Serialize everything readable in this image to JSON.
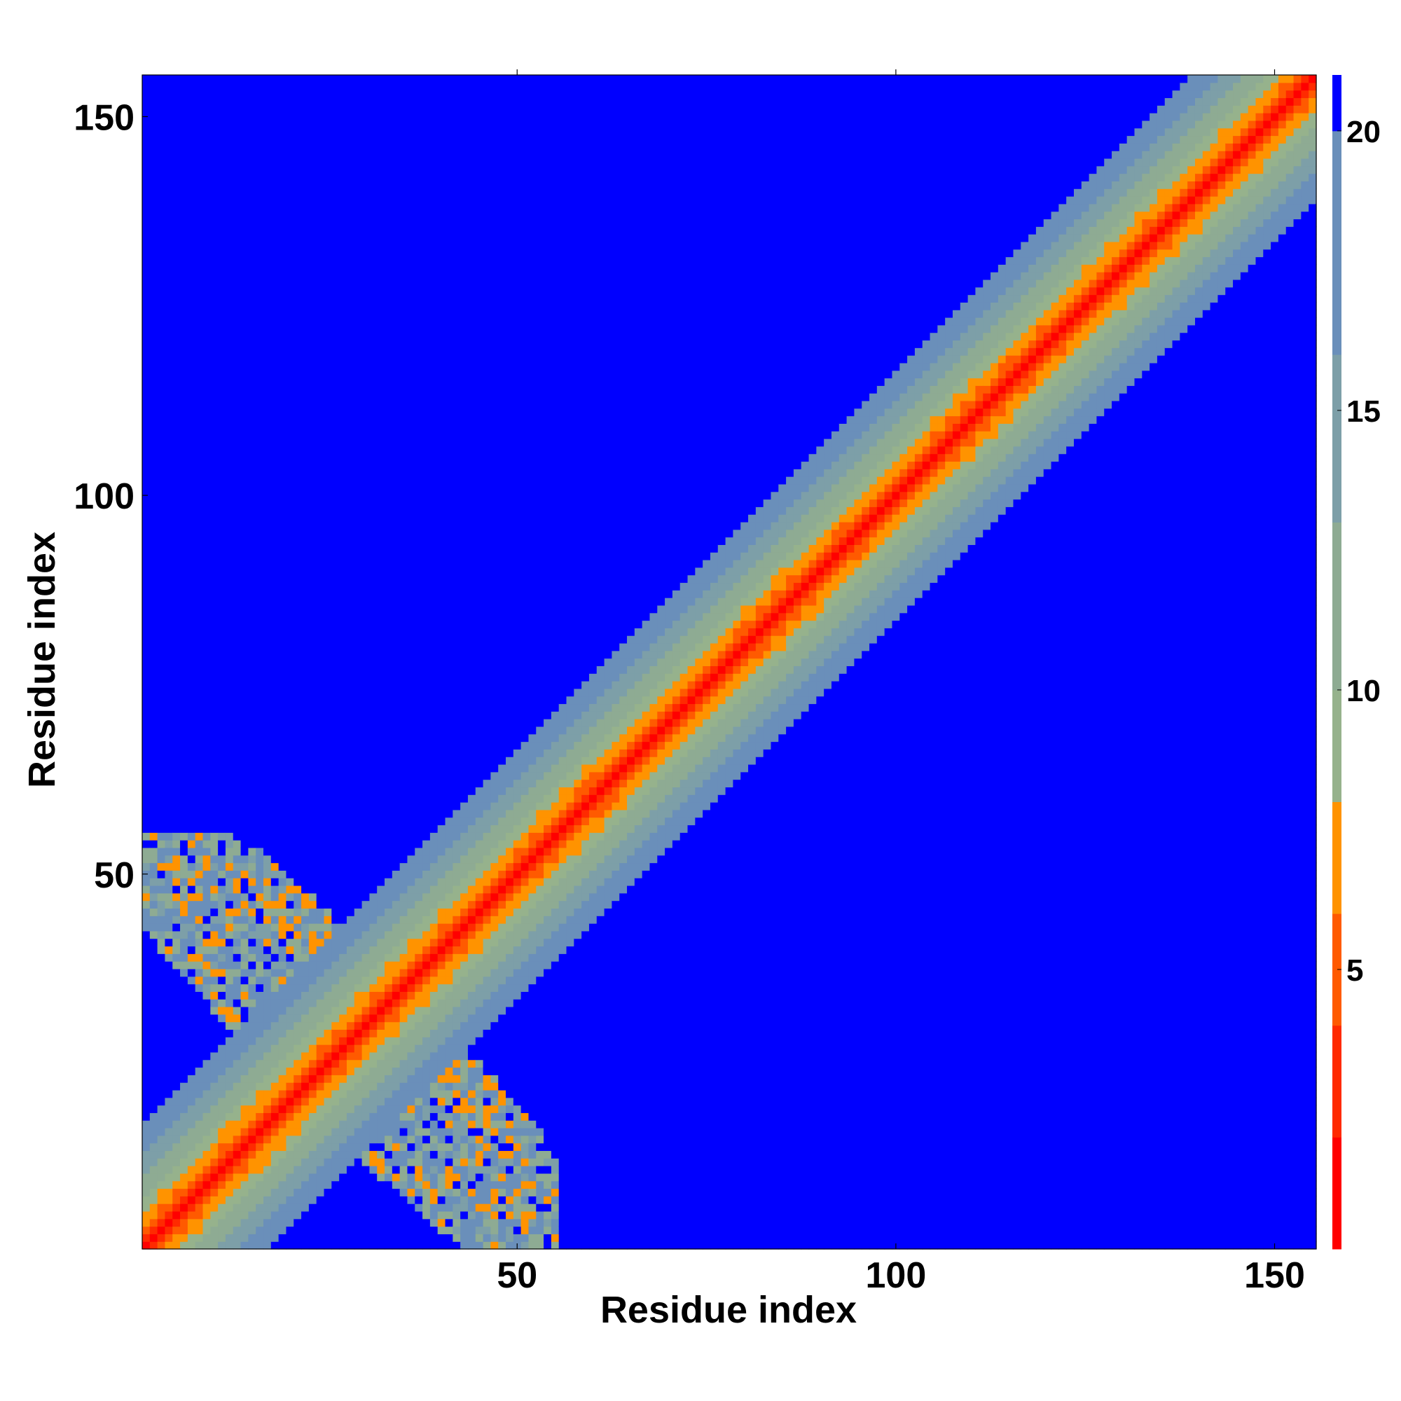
{
  "chart_data": {
    "type": "heatmap",
    "title": "",
    "xlabel": "Residue index",
    "ylabel": "Residue index",
    "n_residues": 155,
    "xlim": [
      1,
      155
    ],
    "ylim": [
      1,
      155
    ],
    "x_ticks": [
      50,
      100,
      150
    ],
    "y_ticks": [
      50,
      100,
      150
    ],
    "x_tick_labels": [
      "50",
      "100",
      "150"
    ],
    "y_tick_labels": [
      "50",
      "100",
      "150"
    ],
    "colorbar": {
      "range": [
        0,
        21
      ],
      "ticks": [
        5,
        10,
        15,
        20
      ],
      "tick_labels": [
        "5",
        "10",
        "15",
        "20"
      ],
      "cap_value": 20,
      "cap_color": "#0000ff",
      "bands": [
        {
          "from": 0,
          "to": 2,
          "color": "#ff0000"
        },
        {
          "from": 2,
          "to": 4,
          "color": "#ff2a00"
        },
        {
          "from": 4,
          "to": 6,
          "color": "#ff5a00"
        },
        {
          "from": 6,
          "to": 8,
          "color": "#ff9300"
        },
        {
          "from": 8,
          "to": 10,
          "color": "#96b28c"
        },
        {
          "from": 10,
          "to": 13,
          "color": "#8eab93"
        },
        {
          "from": 13,
          "to": 16,
          "color": "#7d9fa8"
        },
        {
          "from": 16,
          "to": 20,
          "color": "#6a8fba"
        }
      ]
    },
    "diagonal_band": {
      "description": "symmetric distance values grow with |i-j|",
      "distance_by_offset": [
        0,
        3.8,
        5.5,
        6.5,
        7.5,
        8.5,
        9.5,
        10.5,
        11.5,
        12.5,
        13.5,
        14.5,
        15.5,
        16.5,
        17.5,
        18.5,
        19.5,
        21
      ]
    },
    "off_diagonal_contacts": {
      "region_i": [
        1,
        55
      ],
      "region_j": [
        1,
        55
      ],
      "typical_distance": [
        8,
        20
      ],
      "close_contacts_distance": [
        6,
        8
      ]
    }
  }
}
